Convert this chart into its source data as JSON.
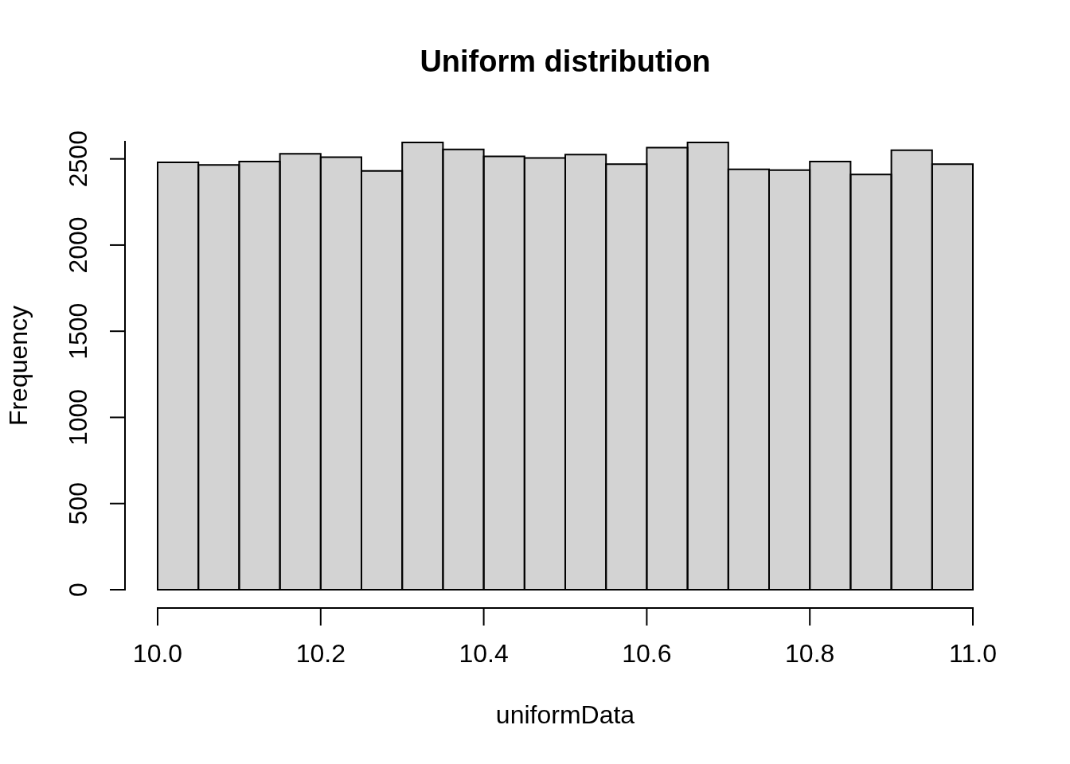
{
  "chart_data": {
    "type": "histogram",
    "title": "Uniform distribution",
    "xlabel": "uniformData",
    "ylabel": "Frequency",
    "bins": [
      10,
      10.05,
      10.1,
      10.15,
      10.2,
      10.25,
      10.3,
      10.35,
      10.4,
      10.45,
      10.5,
      10.55,
      10.6,
      10.65,
      10.7,
      10.75,
      10.8,
      10.85,
      10.9,
      10.95,
      11
    ],
    "values": [
      2480,
      2465,
      2485,
      2530,
      2510,
      2430,
      2595,
      2555,
      2515,
      2505,
      2525,
      2470,
      2565,
      2595,
      2440,
      2435,
      2485,
      2410,
      2550,
      2470
    ],
    "color": "#d3d3d3",
    "xlim": [
      10,
      11
    ],
    "xticks": [
      {
        "value": 10,
        "label": "10.0"
      },
      10.2,
      10.4,
      10.6,
      10.8,
      {
        "value": 11,
        "label": "11.0"
      }
    ],
    "ylim": [
      0,
      2600
    ],
    "yticks": [
      0,
      500,
      1000,
      1500,
      2000,
      2500
    ]
  }
}
